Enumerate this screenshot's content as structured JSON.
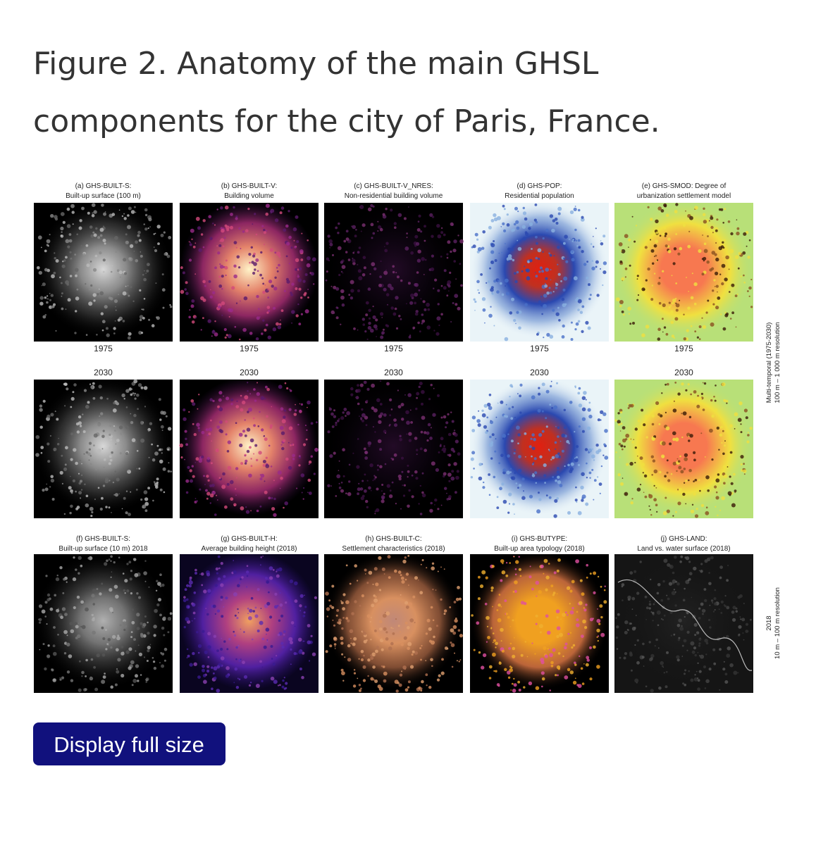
{
  "title_lines": [
    "Figure 2. Anatomy of the main GHSL",
    "components for the city of Paris, France."
  ],
  "multi_temporal_panels": [
    {
      "caption": [
        "(a) GHS-BUILT-S:",
        "Built-up surface (100 m)"
      ],
      "years": [
        "1975",
        "2030"
      ]
    },
    {
      "caption": [
        "(b) GHS-BUILT-V:",
        "Building volume"
      ],
      "years": [
        "1975",
        "2030"
      ]
    },
    {
      "caption": [
        "(c) GHS-BUILT-V_NRES:",
        "Non-residential building volume"
      ],
      "years": [
        "1975",
        "2030"
      ]
    },
    {
      "caption": [
        "(d) GHS-POP:",
        "Residential population"
      ],
      "years": [
        "1975",
        "2030"
      ]
    },
    {
      "caption": [
        "(e) GHS-SMOD: Degree of",
        "urbanization settlement model"
      ],
      "years": [
        "1975",
        "2030"
      ]
    }
  ],
  "panels_2018": [
    {
      "caption": [
        "(f) GHS-BUILT-S:",
        "Built-up surface (10 m) 2018"
      ]
    },
    {
      "caption": [
        "(g) GHS-BUILT-H:",
        "Average building height (2018)"
      ]
    },
    {
      "caption": [
        "(h) GHS-BUILT-C:",
        "Settlement characteristics (2018)"
      ]
    },
    {
      "caption": [
        "(i) GHS-BUTYPE:",
        "Built-up area typology (2018)"
      ]
    },
    {
      "caption": [
        "(j) GHS-LAND:",
        "Land vs. water surface (2018)"
      ]
    }
  ],
  "side_labels": [
    [
      "Multi-temporal (1975-2030)",
      "100 m – 1 000 m resolution"
    ],
    [
      "2018",
      "10 m – 100 m resolution"
    ]
  ],
  "button": "Display full size"
}
